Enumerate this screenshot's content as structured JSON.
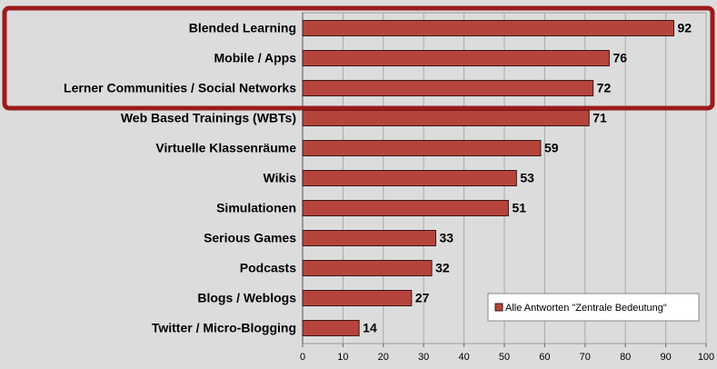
{
  "chart_data": {
    "type": "bar",
    "orientation": "horizontal",
    "categories": [
      "Blended Learning",
      "Mobile / Apps",
      "Lerner Communities / Social Networks",
      "Web Based Trainings (WBTs)",
      "Virtuelle Klassenräume",
      "Wikis",
      "Simulationen",
      "Serious Games",
      "Podcasts",
      "Blogs / Weblogs",
      "Twitter / Micro-Blogging"
    ],
    "series": [
      {
        "name": "Alle Antworten \"Zentrale Bedeutung\"",
        "color": "#b5443c",
        "values": [
          92,
          76,
          72,
          71,
          59,
          53,
          51,
          33,
          32,
          27,
          14
        ]
      }
    ],
    "xlim": [
      0,
      100
    ],
    "xticks": [
      0,
      10,
      20,
      30,
      40,
      50,
      60,
      70,
      80,
      90,
      100
    ],
    "grid": true,
    "legend": "lower right"
  }
}
